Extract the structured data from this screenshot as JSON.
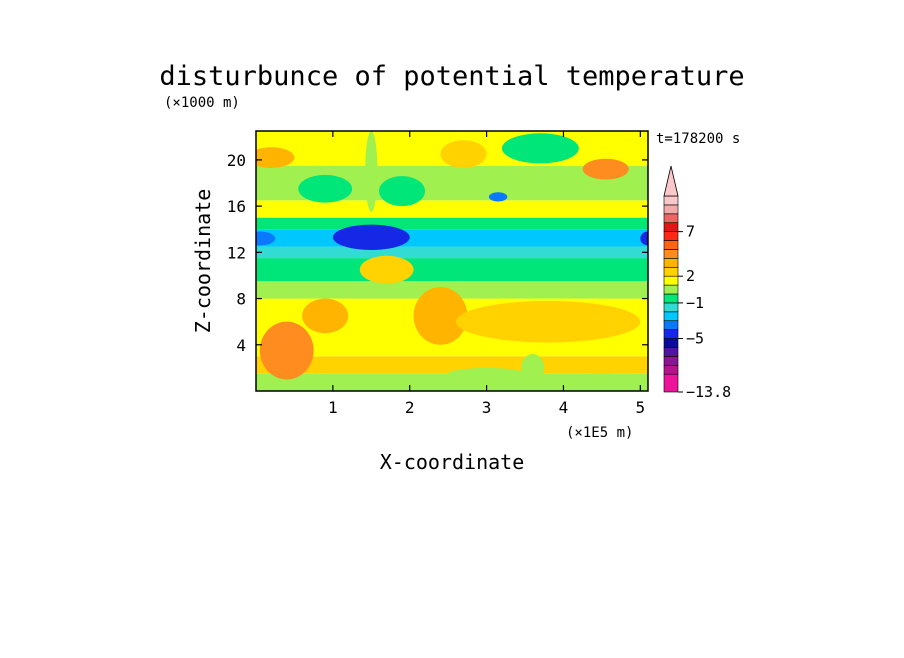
{
  "chart_data": {
    "type": "heatmap",
    "title": "disturbunce of potential temperature",
    "time_label": "t=178200 s",
    "xlabel": "X-coordinate",
    "x_unit": "(×1E5 m)",
    "ylabel": "Z-coordinate",
    "y_unit": "(×1000 m)",
    "xlim": [
      0,
      5.1
    ],
    "ylim": [
      0,
      22.5
    ],
    "x_ticks": [
      1,
      2,
      3,
      4,
      5
    ],
    "y_ticks": [
      4,
      8,
      12,
      16,
      20
    ],
    "colorbar": {
      "levels": [
        -13.8,
        -9,
        -8,
        -7,
        -6,
        -5,
        -4,
        -3,
        -2,
        -1,
        0,
        1,
        2,
        3,
        4,
        5,
        6,
        7,
        8,
        9,
        10,
        14
      ],
      "colors": [
        "#ec149b",
        "#b4148c",
        "#8c1496",
        "#5014a0",
        "#0a0aa0",
        "#1428e6",
        "#0a78ff",
        "#00c8ff",
        "#32dcd2",
        "#00e678",
        "#a0f050",
        "#ffff00",
        "#ffd200",
        "#ffb400",
        "#ff8c1e",
        "#ff6414",
        "#ff2814",
        "#e61414",
        "#f06464",
        "#f4aaaa",
        "#fac8c8"
      ],
      "labels": [
        "-13.8",
        "-5",
        "-1",
        "2",
        "7"
      ],
      "extend": "max"
    },
    "bands": [
      {
        "z": [
          0,
          1.5
        ],
        "value": 0.5
      },
      {
        "z": [
          1.5,
          3
        ],
        "value": 2.5
      },
      {
        "z": [
          3,
          8
        ],
        "value": 1.8
      },
      {
        "z": [
          8,
          9.5
        ],
        "value": 0.6
      },
      {
        "z": [
          9.5,
          11.5
        ],
        "value": -0.5
      },
      {
        "z": [
          11.5,
          12.5
        ],
        "value": -1.2
      },
      {
        "z": [
          12.5,
          14
        ],
        "value": -2.2
      },
      {
        "z": [
          14,
          15
        ],
        "value": -1.0
      },
      {
        "z": [
          15,
          16.5
        ],
        "value": 1.2
      },
      {
        "z": [
          16.5,
          18
        ],
        "value": 0.3
      },
      {
        "z": [
          18,
          19.5
        ],
        "value": 0.5
      },
      {
        "z": [
          19.5,
          22.5
        ],
        "value": 1.0
      }
    ],
    "features": [
      {
        "x": 0.4,
        "z": 3.5,
        "rx": 0.35,
        "rz": 2.5,
        "value": 4.5
      },
      {
        "x": 0.9,
        "z": 6.5,
        "rx": 0.3,
        "rz": 1.5,
        "value": 3.5
      },
      {
        "x": 2.4,
        "z": 6.5,
        "rx": 0.35,
        "rz": 2.5,
        "value": 3.2
      },
      {
        "x": 3.8,
        "z": 6.0,
        "rx": 1.2,
        "rz": 1.8,
        "value": 2.8
      },
      {
        "x": 1.5,
        "z": 13.3,
        "rx": 0.3,
        "rz": 0.7,
        "value": -5.2
      },
      {
        "x": 1.5,
        "z": 13.3,
        "rx": 0.5,
        "rz": 1.1,
        "value": -4.1
      },
      {
        "x": 0.05,
        "z": 13.2,
        "rx": 0.2,
        "rz": 0.6,
        "value": -4.0
      },
      {
        "x": 5.1,
        "z": 13.2,
        "rx": 0.1,
        "rz": 0.6,
        "value": -4.2
      },
      {
        "x": 1.7,
        "z": 10.5,
        "rx": 0.35,
        "rz": 1.2,
        "value": 2.0
      },
      {
        "x": 0.2,
        "z": 20.2,
        "rx": 0.3,
        "rz": 0.9,
        "value": 3.0
      },
      {
        "x": 2.7,
        "z": 20.5,
        "rx": 0.3,
        "rz": 1.2,
        "value": 2.8
      },
      {
        "x": 4.55,
        "z": 19.2,
        "rx": 0.3,
        "rz": 0.9,
        "value": 4.5
      },
      {
        "x": 0.9,
        "z": 17.5,
        "rx": 0.35,
        "rz": 1.2,
        "value": -0.5
      },
      {
        "x": 1.9,
        "z": 17.3,
        "rx": 0.3,
        "rz": 1.3,
        "value": -0.5
      },
      {
        "x": 3.7,
        "z": 21.0,
        "rx": 0.5,
        "rz": 1.3,
        "value": -0.5
      },
      {
        "x": 1.5,
        "z": 19.0,
        "rx": 0.08,
        "rz": 3.5,
        "value": 0.5
      },
      {
        "x": 3.15,
        "z": 16.8,
        "rx": 0.12,
        "rz": 0.4,
        "value": -3.5
      },
      {
        "x": 3.0,
        "z": 1.5,
        "rx": 0.5,
        "rz": 0.5,
        "value": 0.3
      },
      {
        "x": 3.6,
        "z": 2.0,
        "rx": 0.15,
        "rz": 1.2,
        "value": 0.3
      },
      {
        "x": 4.5,
        "z": 1.0,
        "rx": 0.5,
        "rz": 0.5,
        "value": 0.6
      }
    ]
  }
}
